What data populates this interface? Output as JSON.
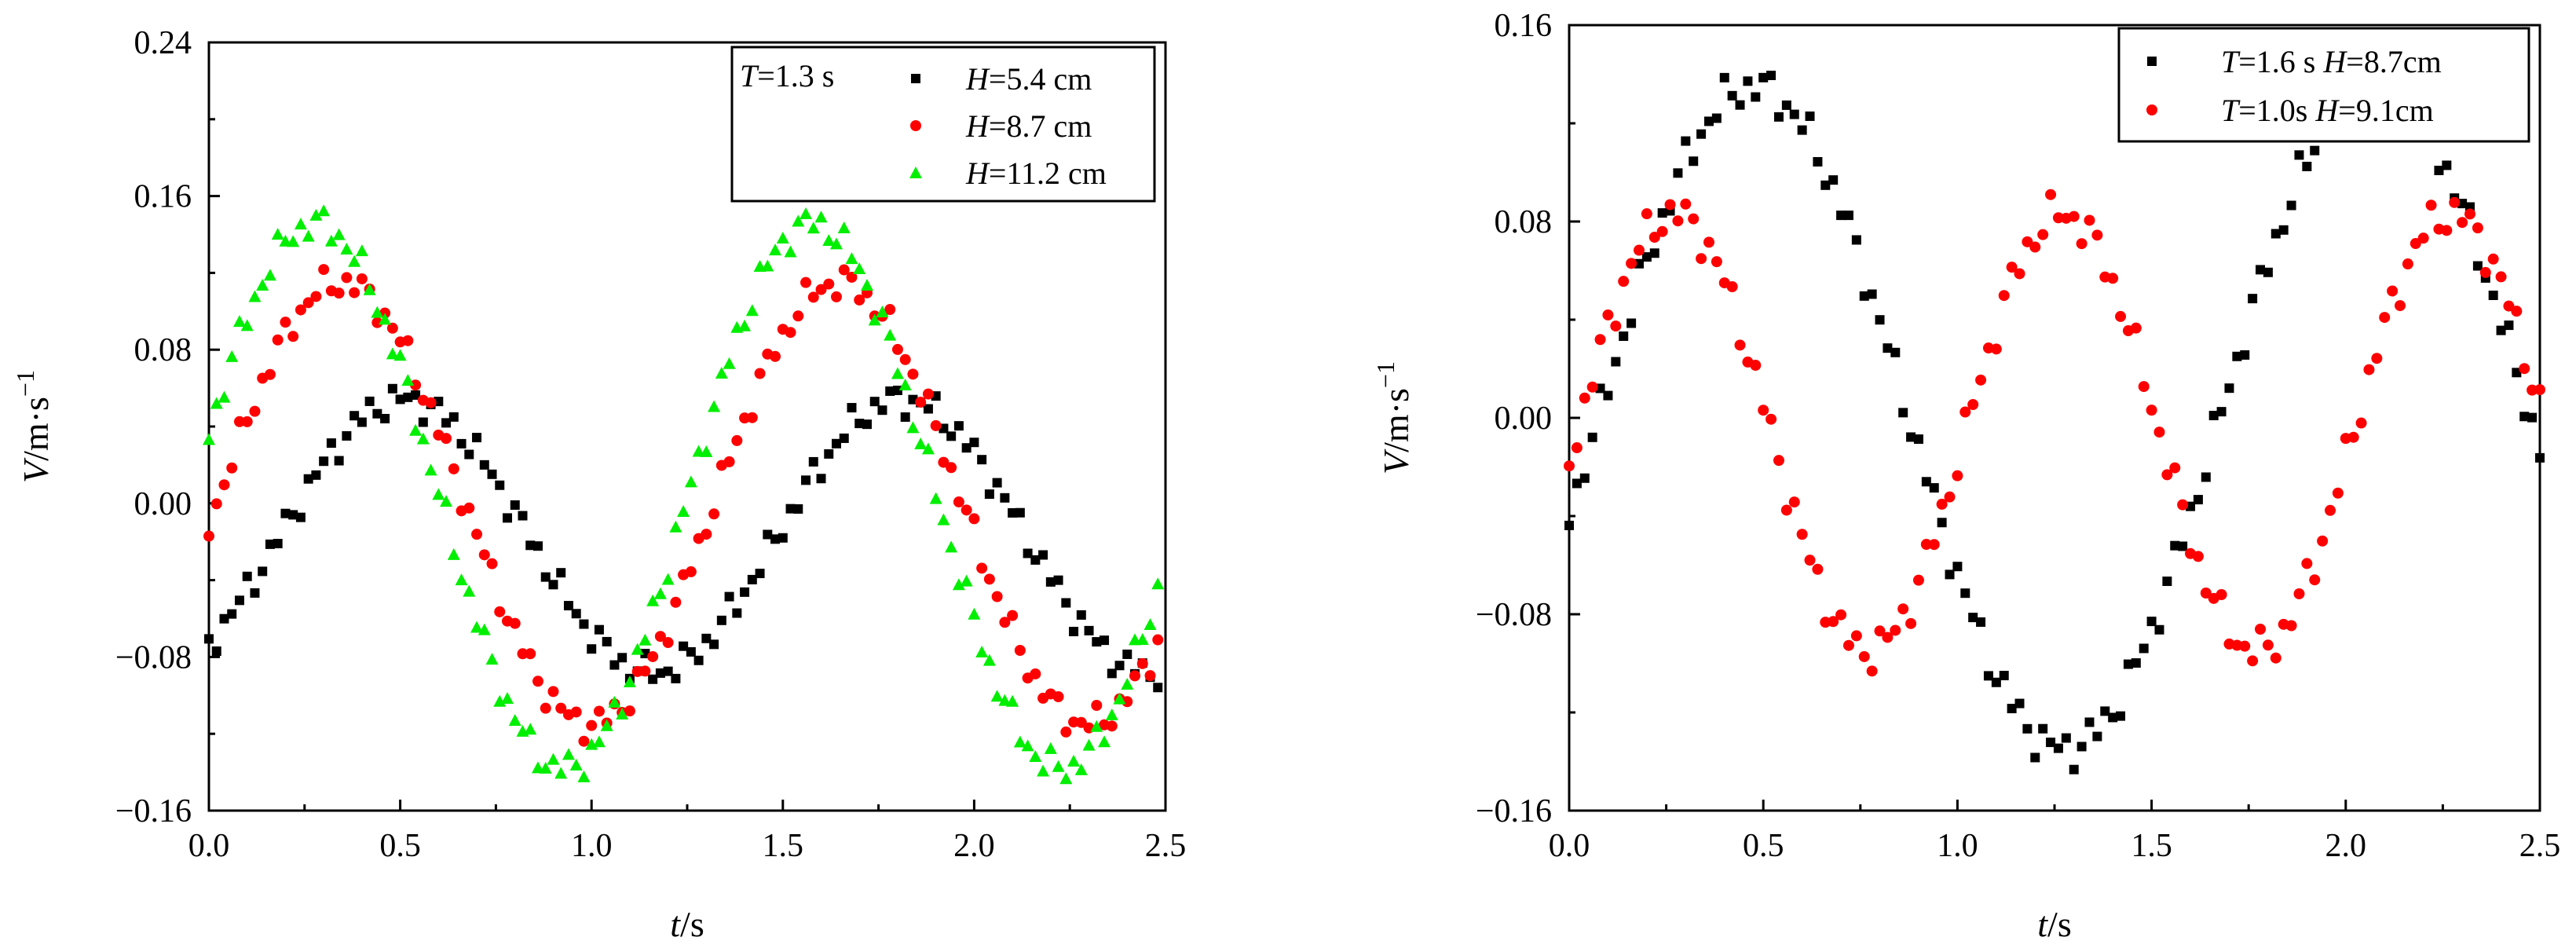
{
  "chart_data": [
    {
      "id": "left",
      "type": "scatter",
      "title": "",
      "xlabel": {
        "italic": "t",
        "rest": "/s"
      },
      "ylabel": {
        "italic": "V",
        "rest": "/m·s",
        "sup": "−1"
      },
      "xlim": [
        0,
        2.5
      ],
      "ylim": [
        -0.16,
        0.24
      ],
      "xticks": [
        0.0,
        0.5,
        1.0,
        1.5,
        2.0,
        2.5
      ],
      "xtick_labels": [
        "0.0",
        "0.5",
        "1.0",
        "1.5",
        "2.0",
        "2.5"
      ],
      "yticks": [
        -0.16,
        -0.08,
        0.0,
        0.08,
        0.16,
        0.24
      ],
      "ytick_labels": [
        "−0.16",
        "−0.08",
        "0.00",
        "0.08",
        "0.16",
        "0.24"
      ],
      "legend_header": {
        "italic": "T",
        "rest": "=1.3 s"
      },
      "legend_position": "top-right",
      "series": [
        {
          "name": "H=5.4 cm",
          "label_italic": "H",
          "label_rest": "=5.4 cm",
          "marker": "square",
          "color": "#000000",
          "period": 1.3,
          "amplitude": 0.071,
          "offset": -0.017,
          "phase": 0.185,
          "t_start": 0.0,
          "t_end": 2.48,
          "dt": 0.02
        },
        {
          "name": "H=8.7 cm",
          "label_italic": "H",
          "label_rest": "=8.7 cm",
          "marker": "circle",
          "color": "#ff0000",
          "period": 1.3,
          "amplitude": 0.115,
          "offset": 0.0,
          "phase": 0.02,
          "t_start": 0.0,
          "t_end": 2.48,
          "dt": 0.02
        },
        {
          "name": "H=11.2 cm",
          "label_italic": "H",
          "label_rest": "=11.2 cm",
          "marker": "triangle",
          "color": "#00ee00",
          "period": 1.3,
          "amplitude": 0.142,
          "offset": 0.004,
          "phase": -0.048,
          "t_start": 0.0,
          "t_end": 2.48,
          "dt": 0.02
        }
      ]
    },
    {
      "id": "right",
      "type": "scatter",
      "title": "",
      "xlabel": {
        "italic": "t",
        "rest": "/s"
      },
      "ylabel": {
        "italic": "V",
        "rest": "/m·s",
        "sup": "−1"
      },
      "xlim": [
        0,
        2.5
      ],
      "ylim": [
        -0.16,
        0.16
      ],
      "xticks": [
        0.0,
        0.5,
        1.0,
        1.5,
        2.0,
        2.5
      ],
      "xtick_labels": [
        "0.0",
        "0.5",
        "1.0",
        "1.5",
        "2.0",
        "2.5"
      ],
      "yticks": [
        -0.16,
        -0.08,
        0.0,
        0.08,
        0.16
      ],
      "ytick_labels": [
        "−0.16",
        "−0.08",
        "0.00",
        "0.08",
        "0.16"
      ],
      "legend_position": "top-right",
      "series": [
        {
          "name": "T=1.6 s H=8.7cm",
          "label_parts": [
            {
              "i": "T"
            },
            {
              "t": "=1.6 s "
            },
            {
              "i": "H"
            },
            {
              "t": "=8.7cm"
            }
          ],
          "marker": "square",
          "color": "#000000",
          "period": 1.6,
          "amplitude": 0.135,
          "offset": 0.0,
          "phase": 0.075,
          "t_start": 0.0,
          "t_end": 2.5,
          "dt": 0.02
        },
        {
          "name": "T=1.0s H=9.1cm",
          "label_parts": [
            {
              "i": "T"
            },
            {
              "t": "=1.0s  "
            },
            {
              "i": "H"
            },
            {
              "t": "=9.1cm"
            }
          ],
          "marker": "circle",
          "color": "#ff0000",
          "period": 1.0,
          "amplitude": 0.089,
          "offset": -0.006,
          "phase": 0.02,
          "t_start": 0.0,
          "t_end": 2.5,
          "dt": 0.02
        }
      ]
    }
  ]
}
